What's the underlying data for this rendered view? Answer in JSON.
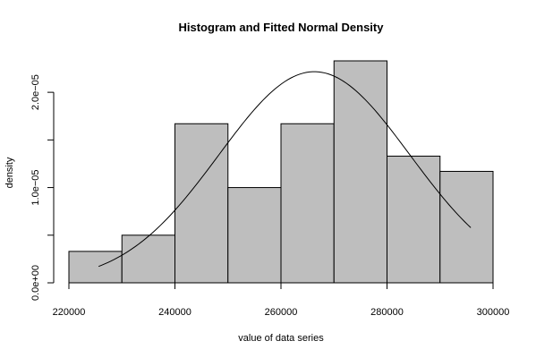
{
  "chart_data": {
    "type": "histogram",
    "title": "Histogram and Fitted Normal Density",
    "xlabel": "value of data series",
    "ylabel": "density",
    "xlim": [
      220000,
      300000
    ],
    "ylim": [
      0,
      2.3e-05
    ],
    "x_ticks": [
      220000,
      240000,
      260000,
      280000,
      300000
    ],
    "x_tick_labels": [
      "220000",
      "240000",
      "260000",
      "280000",
      "300000"
    ],
    "y_ticks": [
      0,
      5e-06,
      1e-05,
      1.5e-05,
      2e-05
    ],
    "y_tick_labels": [
      "0.0e+00",
      "",
      "1.0e−05",
      "",
      "2.0e−05"
    ],
    "bins": [
      {
        "start": 220000,
        "end": 230000,
        "density": 3.3e-06
      },
      {
        "start": 230000,
        "end": 240000,
        "density": 5e-06
      },
      {
        "start": 240000,
        "end": 250000,
        "density": 1.67e-05
      },
      {
        "start": 250000,
        "end": 260000,
        "density": 1e-05
      },
      {
        "start": 260000,
        "end": 270000,
        "density": 1.67e-05
      },
      {
        "start": 270000,
        "end": 280000,
        "density": 2.33e-05
      },
      {
        "start": 280000,
        "end": 290000,
        "density": 1.33e-05
      },
      {
        "start": 290000,
        "end": 300000,
        "density": 1.17e-05
      }
    ],
    "normal_fit": {
      "mean": 266300,
      "sd": 18000,
      "x_range": [
        225600,
        295800
      ]
    },
    "colors": {
      "bar_fill": "#bebebe",
      "line": "#000000"
    },
    "grid": false,
    "legend": "none"
  }
}
